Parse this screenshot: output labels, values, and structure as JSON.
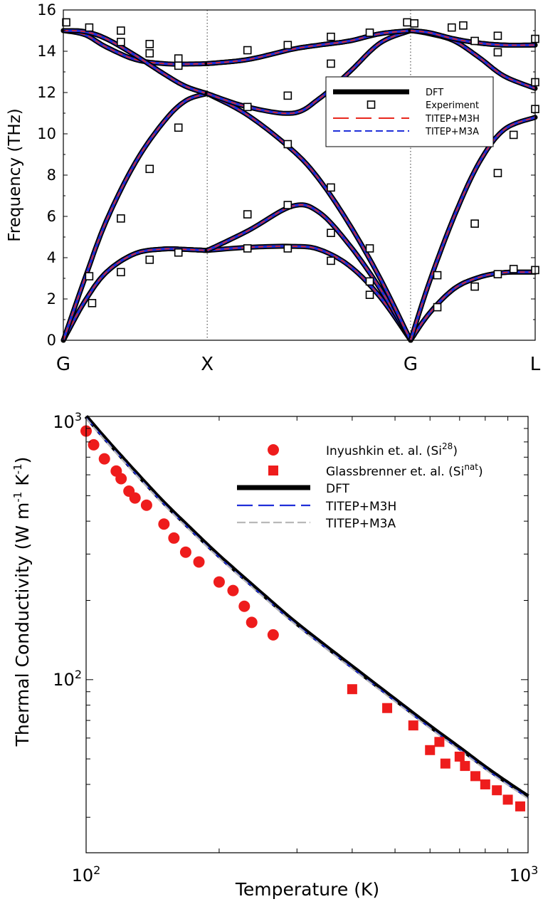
{
  "chart_data": [
    {
      "type": "line",
      "ylabel": "Frequency (THz)",
      "xlabel": "",
      "ylim": [
        0,
        16
      ],
      "yticks": [
        0,
        2,
        4,
        6,
        8,
        10,
        12,
        14,
        16
      ],
      "x_tick_labels": [
        "G",
        "X",
        "G",
        "L"
      ],
      "k_points": [
        0,
        1,
        2.414,
        3.28
      ],
      "grid": false,
      "legend_position": "top-right",
      "legend": [
        "DFT",
        "Experiment",
        "TITEP+M3H",
        "TITEP+M3A"
      ],
      "branch_data": {
        "seg_GX": {
          "knots": [
            0,
            0.15,
            0.3,
            0.5,
            0.7,
            0.85,
            1.0
          ],
          "branches": [
            [
              0,
              1.9,
              3.3,
              4.2,
              4.42,
              4.4,
              4.35
            ],
            [
              0,
              1.9,
              3.3,
              4.2,
              4.42,
              4.4,
              4.35
            ],
            [
              0,
              3.0,
              5.8,
              8.6,
              10.6,
              11.6,
              11.95
            ],
            [
              15.0,
              14.8,
              14.2,
              13.6,
              13.4,
              13.38,
              13.4
            ],
            [
              15.0,
              14.95,
              14.6,
              13.8,
              12.9,
              12.3,
              11.95
            ],
            [
              15.0,
              14.95,
              14.6,
              13.8,
              12.9,
              12.3,
              11.95
            ]
          ]
        },
        "seg_XG": {
          "knots": [
            0,
            0.2,
            0.42,
            0.55,
            0.7,
            0.85,
            1.0
          ],
          "branches": [
            [
              4.35,
              4.5,
              4.55,
              4.4,
              3.6,
              2.1,
              0
            ],
            [
              4.35,
              5.3,
              6.5,
              6.2,
              4.6,
              2.5,
              0
            ],
            [
              11.95,
              10.9,
              9.2,
              7.8,
              5.6,
              3.0,
              0
            ],
            [
              11.95,
              11.3,
              11.0,
              11.7,
              13.0,
              14.4,
              15.0
            ],
            [
              13.4,
              13.6,
              14.1,
              14.3,
              14.5,
              14.85,
              15.0
            ],
            [
              13.4,
              13.6,
              14.1,
              14.3,
              14.5,
              14.85,
              15.0
            ]
          ]
        },
        "seg_GL": {
          "knots": [
            0,
            0.15,
            0.35,
            0.55,
            0.75,
            1.0
          ],
          "branches": [
            [
              0,
              1.3,
              2.5,
              3.05,
              3.28,
              3.3
            ],
            [
              0,
              1.3,
              2.5,
              3.05,
              3.28,
              3.3
            ],
            [
              0,
              2.8,
              6.0,
              8.6,
              10.2,
              10.8
            ],
            [
              15.0,
              14.85,
              14.5,
              13.7,
              12.8,
              12.2
            ],
            [
              15.0,
              14.9,
              14.6,
              14.4,
              14.3,
              14.3
            ],
            [
              15.0,
              14.9,
              14.6,
              14.4,
              14.3,
              14.3
            ]
          ]
        }
      },
      "experiment_points": [
        [
          0.02,
          15.4
        ],
        [
          0.18,
          15.15
        ],
        [
          0.4,
          15.0
        ],
        [
          0.4,
          14.45
        ],
        [
          0.6,
          14.35
        ],
        [
          0.6,
          13.9
        ],
        [
          0.8,
          13.65
        ],
        [
          0.8,
          13.3
        ],
        [
          0.18,
          3.1
        ],
        [
          0.2,
          1.8
        ],
        [
          0.4,
          3.3
        ],
        [
          0.6,
          3.9
        ],
        [
          0.8,
          4.25
        ],
        [
          0.4,
          5.9
        ],
        [
          0.6,
          8.3
        ],
        [
          0.8,
          10.3
        ],
        [
          1.28,
          4.45
        ],
        [
          1.28,
          6.1
        ],
        [
          1.28,
          11.3
        ],
        [
          1.28,
          14.05
        ],
        [
          1.56,
          4.45
        ],
        [
          1.56,
          6.55
        ],
        [
          1.56,
          9.5
        ],
        [
          1.56,
          11.85
        ],
        [
          1.56,
          14.3
        ],
        [
          1.86,
          3.85
        ],
        [
          1.86,
          5.2
        ],
        [
          1.86,
          7.4
        ],
        [
          1.86,
          13.4
        ],
        [
          1.86,
          14.7
        ],
        [
          2.13,
          2.2
        ],
        [
          2.13,
          2.85
        ],
        [
          2.13,
          4.45
        ],
        [
          2.13,
          14.9
        ],
        [
          2.39,
          15.4
        ],
        [
          2.44,
          15.35
        ],
        [
          2.6,
          1.6
        ],
        [
          2.6,
          3.15
        ],
        [
          2.7,
          15.15
        ],
        [
          2.78,
          15.25
        ],
        [
          2.86,
          2.6
        ],
        [
          2.86,
          5.65
        ],
        [
          2.86,
          14.5
        ],
        [
          3.02,
          3.2
        ],
        [
          3.02,
          8.1
        ],
        [
          3.02,
          13.95
        ],
        [
          3.02,
          14.75
        ],
        [
          3.13,
          3.45
        ],
        [
          3.13,
          9.95
        ],
        [
          3.28,
          3.4
        ],
        [
          3.28,
          11.2
        ],
        [
          3.28,
          12.5
        ],
        [
          3.28,
          14.6
        ]
      ]
    },
    {
      "type": "line",
      "xlabel": "Temperature (K)",
      "ylabel": "Thermal Conductivity (W m-1 K-1)",
      "ylabel_parts": [
        "Thermal Conductivity (W m",
        "-1",
        " K",
        "-1",
        ")"
      ],
      "x_scale": "log",
      "y_scale": "log",
      "xlim": [
        100,
        1000
      ],
      "ylim": [
        22,
        1000
      ],
      "x_tick_labels": [
        {
          "base": "10",
          "exp": "2"
        },
        {
          "base": "10",
          "exp": "3"
        }
      ],
      "y_tick_labels": [
        {
          "base": "10",
          "exp": "2"
        },
        {
          "base": "10",
          "exp": "3"
        }
      ],
      "grid": false,
      "legend_position": "top-right",
      "legend": [
        {
          "text": "Inyushkin et. al. (Si",
          "sup": "28",
          "tail": ")"
        },
        {
          "text": "Glassbrenner et. al. (Si",
          "sup": "nat",
          "tail": ")"
        },
        {
          "text": "DFT",
          "sup": "",
          "tail": ""
        },
        {
          "text": "TITEP+M3H",
          "sup": "",
          "tail": ""
        },
        {
          "text": "TITEP+M3A",
          "sup": "",
          "tail": ""
        }
      ],
      "dft": {
        "x": [
          100,
          110,
          120,
          130,
          150,
          175,
          200,
          250,
          300,
          400,
          500,
          600,
          700,
          800,
          900,
          1000
        ],
        "y": [
          1000,
          830,
          705,
          608,
          470,
          365,
          295,
          212,
          163,
          112,
          84,
          66.5,
          55,
          46.5,
          40.5,
          36
        ]
      },
      "inyushkin": {
        "x": [
          100,
          104,
          110,
          117,
          120,
          125,
          129,
          137,
          150,
          158,
          168,
          180,
          200,
          215,
          228,
          237,
          265
        ],
        "y": [
          880,
          780,
          690,
          620,
          580,
          520,
          490,
          460,
          390,
          345,
          305,
          280,
          235,
          218,
          190,
          165,
          148
        ]
      },
      "glassbrenner": {
        "x": [
          400,
          480,
          550,
          600,
          630,
          650,
          700,
          720,
          760,
          800,
          850,
          900,
          960
        ],
        "y": [
          92,
          78,
          67,
          54,
          58,
          48,
          51,
          47,
          43,
          40,
          38,
          35,
          33
        ]
      }
    }
  ],
  "colors": {
    "dft": "#000000",
    "m3h_top": "#e8281e",
    "m3a_top": "#1f2fd9",
    "m3h_bottom": "#1f2fd9",
    "m3a_bottom": "#b8b8b8",
    "inyushkin": "#ee1c1c",
    "glassbrenner": "#ee1c1c"
  }
}
